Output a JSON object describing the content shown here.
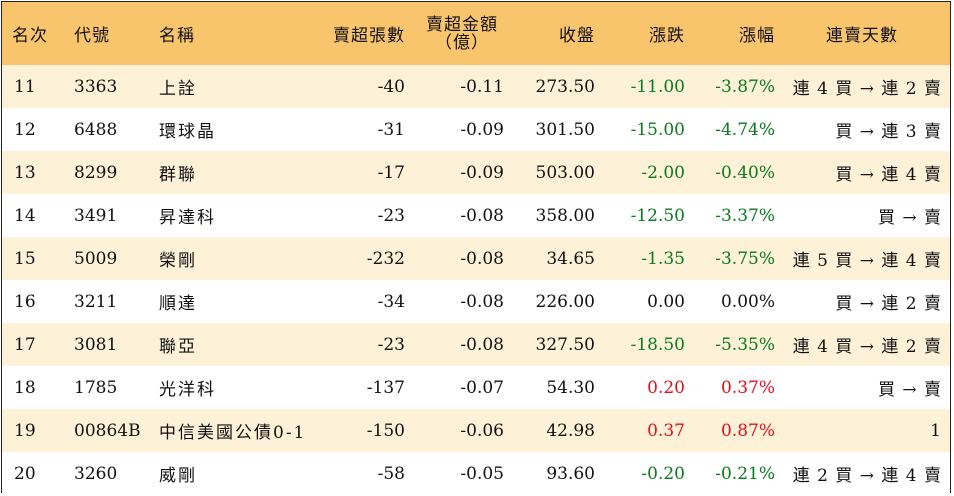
{
  "header": {
    "rank": "名次",
    "code": "代號",
    "name": "名稱",
    "net_sell_lots": "賣超張數",
    "net_sell_amount_l1": "賣超金額",
    "net_sell_amount_l2": "（億）",
    "close": "收盤",
    "change": "漲跌",
    "change_pct": "漲幅",
    "streak": "連賣天數"
  },
  "colors": {
    "header_bg": "#f8c46c",
    "odd_row_bg": "#fdf2d8",
    "down": "#0a7a1e",
    "up": "#e0111e"
  },
  "rows": [
    {
      "rank": "11",
      "code": "3363",
      "name": "上詮",
      "lots": "-40",
      "amount": "-0.11",
      "close": "273.50",
      "change": "-11.00",
      "pct": "-3.87%",
      "dir": "neg",
      "streak": "連 4 買 → 連 2 賣"
    },
    {
      "rank": "12",
      "code": "6488",
      "name": "環球晶",
      "lots": "-31",
      "amount": "-0.09",
      "close": "301.50",
      "change": "-15.00",
      "pct": "-4.74%",
      "dir": "neg",
      "streak": "買 → 連 3 賣"
    },
    {
      "rank": "13",
      "code": "8299",
      "name": "群聯",
      "lots": "-17",
      "amount": "-0.09",
      "close": "503.00",
      "change": "-2.00",
      "pct": "-0.40%",
      "dir": "neg",
      "streak": "買 → 連 4 賣"
    },
    {
      "rank": "14",
      "code": "3491",
      "name": "昇達科",
      "lots": "-23",
      "amount": "-0.08",
      "close": "358.00",
      "change": "-12.50",
      "pct": "-3.37%",
      "dir": "neg",
      "streak": "買 → 賣"
    },
    {
      "rank": "15",
      "code": "5009",
      "name": "榮剛",
      "lots": "-232",
      "amount": "-0.08",
      "close": "34.65",
      "change": "-1.35",
      "pct": "-3.75%",
      "dir": "neg",
      "streak": "連 5 買 → 連 4 賣"
    },
    {
      "rank": "16",
      "code": "3211",
      "name": "順達",
      "lots": "-34",
      "amount": "-0.08",
      "close": "226.00",
      "change": "0.00",
      "pct": "0.00%",
      "dir": "flat",
      "streak": "買 → 連 2 賣"
    },
    {
      "rank": "17",
      "code": "3081",
      "name": "聯亞",
      "lots": "-23",
      "amount": "-0.08",
      "close": "327.50",
      "change": "-18.50",
      "pct": "-5.35%",
      "dir": "neg",
      "streak": "連 4 買 → 連 2 賣"
    },
    {
      "rank": "18",
      "code": "1785",
      "name": "光洋科",
      "lots": "-137",
      "amount": "-0.07",
      "close": "54.30",
      "change": "0.20",
      "pct": "0.37%",
      "dir": "pos",
      "streak": "買 → 賣"
    },
    {
      "rank": "19",
      "code": "00864B",
      "name": "中信美國公債0-1",
      "lots": "-150",
      "amount": "-0.06",
      "close": "42.98",
      "change": "0.37",
      "pct": "0.87%",
      "dir": "pos",
      "streak": "1"
    },
    {
      "rank": "20",
      "code": "3260",
      "name": "威剛",
      "lots": "-58",
      "amount": "-0.05",
      "close": "93.60",
      "change": "-0.20",
      "pct": "-0.21%",
      "dir": "neg",
      "streak": "連 2 買 → 連 4 賣"
    }
  ]
}
